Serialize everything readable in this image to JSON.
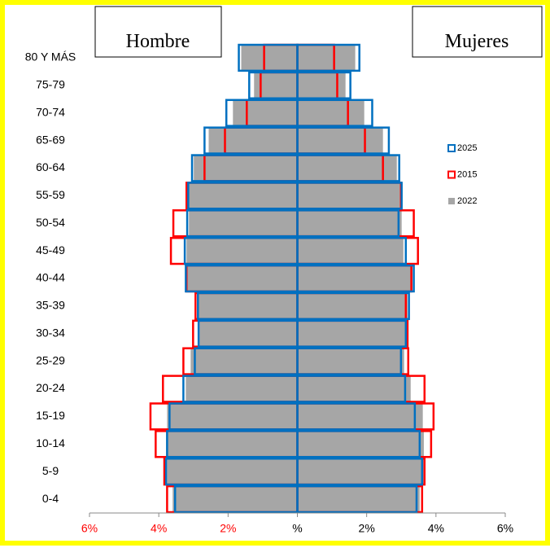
{
  "chart_data": {
    "type": "pyramid",
    "left_label": "Hombre",
    "right_label": "Mujeres",
    "categories": [
      "80 Y MÁS",
      "75-79",
      "70-74",
      "65-69",
      "60-64",
      "55-59",
      "50-54",
      "45-49",
      "40-44",
      "35-39",
      "30-34",
      "25-29",
      "20-24",
      "15-19",
      "10-14",
      "5-9",
      "0-4"
    ],
    "series": [
      {
        "name": "2022",
        "color": "#a6a6a6",
        "style": "fill",
        "male": [
          -1.62,
          -1.25,
          -1.86,
          -2.56,
          -2.99,
          -3.13,
          -3.13,
          -3.2,
          -3.18,
          -2.85,
          -2.82,
          -3.08,
          -3.22,
          -3.76,
          -3.79,
          -3.76,
          -3.6
        ],
        "female": [
          1.67,
          1.39,
          1.93,
          2.47,
          2.87,
          3.01,
          3.01,
          3.06,
          3.32,
          3.18,
          3.11,
          3.08,
          3.27,
          3.62,
          3.65,
          3.65,
          3.53
        ]
      },
      {
        "name": "2015",
        "color": "#ff0000",
        "style": "outline",
        "male": [
          -0.96,
          -1.06,
          -1.46,
          -2.09,
          -2.68,
          -3.2,
          -3.58,
          -3.65,
          -3.2,
          -2.94,
          -3.01,
          -3.29,
          -3.88,
          -4.24,
          -4.09,
          -3.84,
          -3.76
        ],
        "female": [
          1.06,
          1.15,
          1.46,
          1.95,
          2.47,
          2.99,
          3.36,
          3.48,
          3.29,
          3.13,
          3.18,
          3.2,
          3.67,
          3.93,
          3.86,
          3.67,
          3.6
        ]
      },
      {
        "name": "2025",
        "color": "#0070c0",
        "style": "outline",
        "male": [
          -1.69,
          -1.39,
          -2.05,
          -2.68,
          -3.04,
          -3.15,
          -3.18,
          -3.25,
          -3.22,
          -2.87,
          -2.85,
          -2.96,
          -3.29,
          -3.69,
          -3.76,
          -3.79,
          -3.53
        ],
        "female": [
          1.79,
          1.53,
          2.16,
          2.64,
          2.94,
          3.01,
          2.92,
          3.13,
          3.36,
          3.22,
          3.13,
          2.99,
          3.11,
          3.39,
          3.53,
          3.6,
          3.44
        ]
      }
    ],
    "legend_order": [
      2,
      1,
      0
    ],
    "xlim": [
      -6,
      6
    ],
    "xticks": [
      {
        "value": -6,
        "label": "6%"
      },
      {
        "value": -4,
        "label": "4%"
      },
      {
        "value": -2,
        "label": "2%"
      },
      {
        "value": 0,
        "label": "%"
      },
      {
        "value": 2,
        "label": "2%"
      },
      {
        "value": 4,
        "label": "4%"
      },
      {
        "value": 6,
        "label": "6%"
      }
    ],
    "negative_tick_color": "#ff0000",
    "axis_color": "#0070c0"
  }
}
